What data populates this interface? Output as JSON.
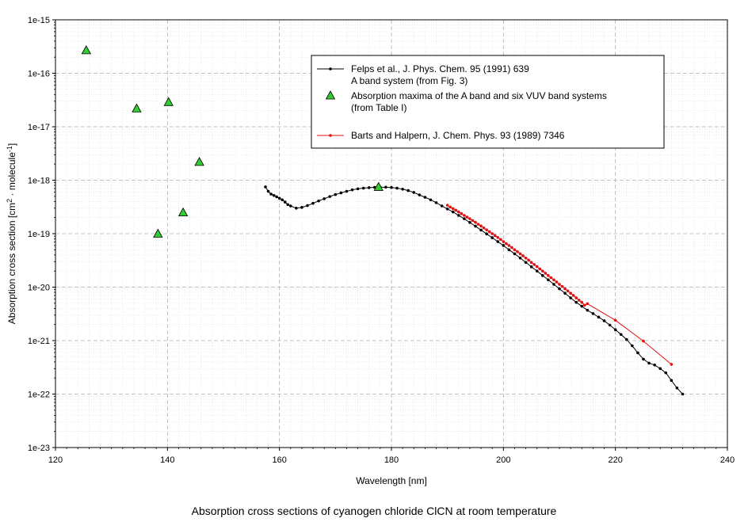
{
  "caption": "Absorption cross sections of cyanogen chloride ClCN at room temperature",
  "chart_data": {
    "type": "line",
    "xlabel": "Wavelength [nm]",
    "ylabel": {
      "pre": "Absorption cross section [cm",
      "sup1": "2",
      "mid": " · molecule",
      "sup2": "-1",
      "post": "]"
    },
    "xlim": [
      120,
      240
    ],
    "ylim": [
      1e-23,
      1e-15
    ],
    "yscale": "log",
    "grid": true,
    "legend_position": "top-right",
    "x_ticks": [
      "120",
      "140",
      "160",
      "180",
      "200",
      "220",
      "240"
    ],
    "y_ticks": [
      "1e-23",
      "1e-22",
      "1e-21",
      "1e-20",
      "1e-19",
      "1e-18",
      "1e-17",
      "1e-16",
      "1e-15"
    ],
    "series": [
      {
        "name": "Felps et al., J. Phys. Chem. 95 (1991) 639",
        "name_line2": "A band system (from Fig. 3)",
        "kind": "line-marker",
        "color": "#000000",
        "x": [
          157.5,
          158,
          158.5,
          159,
          159.5,
          160,
          160.5,
          161,
          161.5,
          162,
          163,
          164,
          165,
          166,
          167,
          168,
          169,
          170,
          171,
          172,
          173,
          174,
          175,
          176,
          177,
          178,
          179,
          180,
          181,
          182,
          183,
          184,
          185,
          186,
          187,
          188,
          189,
          190,
          191,
          192,
          193,
          194,
          195,
          196,
          197,
          198,
          199,
          200,
          201,
          202,
          203,
          204,
          205,
          206,
          207,
          208,
          209,
          210,
          211,
          212,
          213,
          214,
          215,
          216,
          217,
          218,
          219,
          220,
          221,
          222,
          223,
          224,
          225,
          226,
          227,
          228,
          229,
          230,
          231,
          232
        ],
        "y": [
          7.5e-19,
          6.2e-19,
          5.5e-19,
          5.2e-19,
          4.9e-19,
          4.6e-19,
          4.3e-19,
          3.9e-19,
          3.5e-19,
          3.3e-19,
          3e-19,
          3.1e-19,
          3.35e-19,
          3.7e-19,
          4.1e-19,
          4.5e-19,
          4.95e-19,
          5.4e-19,
          5.8e-19,
          6.2e-19,
          6.6e-19,
          6.9e-19,
          7.1e-19,
          7.25e-19,
          7.35e-19,
          7.4e-19,
          7.4e-19,
          7.3e-19,
          7.1e-19,
          6.8e-19,
          6.4e-19,
          5.9e-19,
          5.3e-19,
          4.8e-19,
          4.3e-19,
          3.8e-19,
          3.3e-19,
          2.9e-19,
          2.55e-19,
          2.2e-19,
          1.9e-19,
          1.62e-19,
          1.38e-19,
          1.17e-19,
          9.9e-20,
          8.4e-20,
          7.1e-20,
          6e-20,
          5e-20,
          4.2e-20,
          3.5e-20,
          2.9e-20,
          2.4e-20,
          2e-20,
          1.65e-20,
          1.37e-20,
          1.13e-20,
          9.3e-21,
          7.7e-21,
          6.3e-21,
          5.2e-21,
          4.4e-21,
          3.7e-21,
          3.2e-21,
          2.75e-21,
          2.35e-21,
          1.95e-21,
          1.6e-21,
          1.3e-21,
          1.05e-21,
          8e-22,
          5.9e-22,
          4.5e-22,
          3.8e-22,
          3.5e-22,
          3e-22,
          2.5e-22,
          1.8e-22,
          1.3e-22,
          1e-22
        ]
      },
      {
        "name": "Absorption maxima of the A band and six VUV band systems",
        "name_line2": "(from Table I)",
        "kind": "marker-triangle",
        "color": "#33cc33",
        "x": [
          125.5,
          134.5,
          138.3,
          140.2,
          142.8,
          145.7,
          177.7
        ],
        "y": [
          2.7e-16,
          2.2e-17,
          1e-19,
          2.9e-17,
          2.5e-19,
          2.2e-18,
          7.5e-19
        ]
      },
      {
        "name": "Barts and Halpern, J. Chem. Phys. 93 (1989) 7346",
        "kind": "line-marker",
        "color": "#e01010",
        "x": [
          190,
          190.5,
          191,
          191.5,
          192,
          192.5,
          193,
          193.5,
          194,
          194.5,
          195,
          195.5,
          196,
          196.5,
          197,
          197.5,
          198,
          198.5,
          199,
          199.5,
          200,
          200.5,
          201,
          201.5,
          202,
          202.5,
          203,
          203.5,
          204,
          204.5,
          205,
          205.5,
          206,
          206.5,
          207,
          207.5,
          208,
          208.5,
          209,
          209.5,
          210,
          210.5,
          211,
          211.5,
          212,
          212.5,
          213,
          213.5,
          214,
          214.5,
          215,
          220,
          225,
          230
        ],
        "y": [
          3.4e-19,
          3.15e-19,
          2.95e-19,
          2.75e-19,
          2.55e-19,
          2.37e-19,
          2.2e-19,
          2.04e-19,
          1.9e-19,
          1.76e-19,
          1.63e-19,
          1.5e-19,
          1.39e-19,
          1.28e-19,
          1.18e-19,
          1.09e-19,
          1e-19,
          9.2e-20,
          8.5e-20,
          7.8e-20,
          7.1e-20,
          6.5e-20,
          6e-20,
          5.5e-20,
          5e-20,
          4.6e-20,
          4.2e-20,
          3.85e-20,
          3.5e-20,
          3.2e-20,
          2.9e-20,
          2.65e-20,
          2.42e-20,
          2.2e-20,
          2e-20,
          1.82e-20,
          1.65e-20,
          1.5e-20,
          1.37e-20,
          1.25e-20,
          1.13e-20,
          1.03e-20,
          9.3e-21,
          8.5e-21,
          7.7e-21,
          7e-21,
          6.3e-21,
          5.7e-21,
          5.2e-21,
          4.6e-21,
          4.9e-21,
          2.4e-21,
          9.8e-22,
          3.6e-22
        ]
      }
    ]
  }
}
